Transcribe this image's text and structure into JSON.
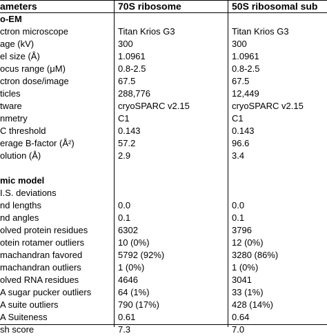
{
  "table": {
    "headers": [
      "ameters",
      "70S ribosome",
      "50S ribosomal sub"
    ],
    "rows": [
      {
        "label": "o-EM",
        "bold": true,
        "v1": "",
        "v2": ""
      },
      {
        "label": "ctron microscope",
        "v1": "Titan Krios G3",
        "v2": "Titan Krios G3"
      },
      {
        "label": "age (kV)",
        "v1": "300",
        "v2": "300"
      },
      {
        "label": "el size (Å)",
        "v1": "1.0961",
        "v2": "1.0961"
      },
      {
        "label": "ocus range (μM)",
        "v1": "0.8-2.5",
        "v2": "0.8-2.5"
      },
      {
        "label": "ctron dose/image",
        "v1": "67.5",
        "v2": "67.5"
      },
      {
        "label": "ticles",
        "v1": "288,776",
        "v2": "12,449"
      },
      {
        "label": "tware",
        "v1": "cryoSPARC v2.15",
        "v2": "cryoSPARC v2.15"
      },
      {
        "label": "nmetry",
        "v1": "C1",
        "v2": "C1"
      },
      {
        "label": "C threshold",
        "v1": "0.143",
        "v2": "0.143"
      },
      {
        "label": "erage B-factor (Å²)",
        "v1": "57.2",
        "v2": "96.6"
      },
      {
        "label": "olution (Å)",
        "v1": "2.9",
        "v2": "3.4"
      },
      {
        "label": "",
        "v1": "",
        "v2": ""
      },
      {
        "label": "mic model",
        "bold": true,
        "v1": "",
        "v2": ""
      },
      {
        "label": "I.S. deviations",
        "v1": "",
        "v2": ""
      },
      {
        "label": "nd lengths",
        "v1": "0.0",
        "v2": "0.0"
      },
      {
        "label": "nd angles",
        "v1": "0.1",
        "v2": "0.1"
      },
      {
        "label": "olved protein residues",
        "v1": "6302",
        "v2": "3796"
      },
      {
        "label": "otein rotamer outliers",
        "v1": "10 (0%)",
        "v2": "12 (0%)"
      },
      {
        "label": "machandran favored",
        "v1": "5792 (92%)",
        "v2": "3280 (86%)"
      },
      {
        "label": "machandran outliers",
        "v1": "1 (0%)",
        "v2": "1 (0%)"
      },
      {
        "label": "olved RNA residues",
        "v1": "4646",
        "v2": "3041"
      },
      {
        "label": "A sugar pucker outliers",
        "v1": "64 (1%)",
        "v2": "33 (1%)"
      },
      {
        "label": "A suite outliers",
        "v1": "790 (17%)",
        "v2": "428 (14%)"
      },
      {
        "label": "A Suiteness",
        "v1": "0.61",
        "v2": "0.64"
      },
      {
        "label": "sh score",
        "v1": "7.3",
        "v2": "7.0"
      }
    ]
  }
}
